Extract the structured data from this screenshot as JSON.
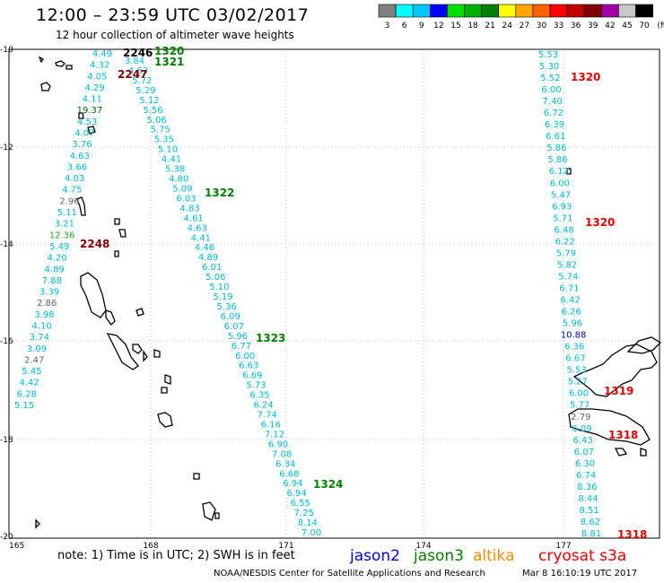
{
  "title": "12:00 – 23:59 UTC 03/02/2017",
  "subtitle": "12 hour collection of altimeter wave heights",
  "colorbar": {
    "colors": [
      "#808080",
      "#00ffff",
      "#00c8ff",
      "#0000ff",
      "#00e000",
      "#00b000",
      "#008000",
      "#ffff00",
      "#ffa500",
      "#ff6000",
      "#ff0000",
      "#c00000",
      "#800000",
      "#a000a0",
      "#c8c8c8",
      "#000000"
    ],
    "labels": [
      "3",
      "6",
      "9",
      "12",
      "15",
      "18",
      "21",
      "24",
      "27",
      "30",
      "33",
      "36",
      "39",
      "42",
      "45",
      "70",
      "(ft)"
    ]
  },
  "axes": {
    "lat_labels": [
      "-10",
      "-12",
      "-14",
      "-16",
      "-18",
      "-20"
    ],
    "lon_labels": [
      "165",
      "168",
      "171",
      "174",
      "177"
    ]
  },
  "note": "note: 1) Time is in UTC; 2) SWH is in feet",
  "satellites": [
    {
      "name": "jason2",
      "color": "#0000e0"
    },
    {
      "name": "jason3",
      "color": "#008000"
    },
    {
      "name": "altika",
      "color": "#ff8c00"
    },
    {
      "name": "cryosat s3a",
      "color": "#e00000"
    }
  ],
  "credit": "NOAA/NESDIS Center for Satellite Applications and Research",
  "credit_date": "Mar  8 16:10:19 UTC 2017",
  "track_labels": [
    {
      "text": "2246",
      "color": "#000000"
    },
    {
      "text": "1320",
      "color": "#008000"
    },
    {
      "text": "1321",
      "color": "#008000"
    },
    {
      "text": "2247",
      "color": "#800000"
    },
    {
      "text": "1322",
      "color": "#008000"
    },
    {
      "text": "2248",
      "color": "#800000"
    },
    {
      "text": "1323",
      "color": "#008000"
    },
    {
      "text": "1324",
      "color": "#008000"
    },
    {
      "text": "1320",
      "color": "#e00000"
    },
    {
      "text": "1320",
      "color": "#e00000"
    },
    {
      "text": "1319",
      "color": "#e00000"
    },
    {
      "text": "1318",
      "color": "#e00000"
    },
    {
      "text": "1318",
      "color": "#e00000"
    }
  ],
  "wave_heights": {
    "track_west": [
      "4.49",
      "4.32",
      "4.05",
      "4.29",
      "4.11",
      "19.37",
      "4.53",
      "4.07",
      "3.76",
      "4.63",
      "3.66",
      "4.03",
      "4.75",
      "2.96",
      "5.11",
      "3.21",
      "12.36",
      "5.49",
      "4.20",
      "4.89",
      "7.88",
      "3.39",
      "2.86",
      "3.98",
      "4.10",
      "3.74",
      "3.09",
      "2.47",
      "5.45",
      "4.42",
      "6.28",
      "5.15"
    ],
    "track_mid": [
      "3.84",
      "4.63",
      "5.72",
      "5.29",
      "5.12",
      "5.56",
      "5.06",
      "5.75",
      "5.35",
      "5.10",
      "4.41",
      "5.38",
      "4.80",
      "5.09",
      "6.03",
      "4.83",
      "4.61",
      "4.63",
      "4.41",
      "4.46",
      "4.89",
      "6.01",
      "5.06",
      "5.10",
      "5.19",
      "5.36",
      "6.09",
      "6.07",
      "5.96",
      "6.77",
      "6.00",
      "6.63",
      "6.69",
      "5.73",
      "6.35",
      "6.24",
      "7.74",
      "6.16",
      "7.12",
      "6.90",
      "7.08",
      "6.34",
      "6.68",
      "6.94",
      "6.94",
      "6.55",
      "7.25",
      "8.14",
      "7.00"
    ],
    "track_east": [
      "5.53",
      "5.30",
      "5.52",
      "6.00",
      "7.40",
      "6.72",
      "6.39",
      "6.61",
      "5.86",
      "5.86",
      "6.12",
      "6.00",
      "5.47",
      "6.93",
      "5.71",
      "6.48",
      "6.22",
      "5.79",
      "5.82",
      "5.74",
      "6.71",
      "6.42",
      "6.26",
      "5.96",
      "10.88",
      "6.36",
      "6.67",
      "5.53",
      "5.27",
      "6.00",
      "5.77",
      "2.79",
      "6.09",
      "6.43",
      "6.07",
      "6.30",
      "6.74",
      "8.36",
      "8.44",
      "8.51",
      "8.62",
      "8.81"
    ]
  }
}
